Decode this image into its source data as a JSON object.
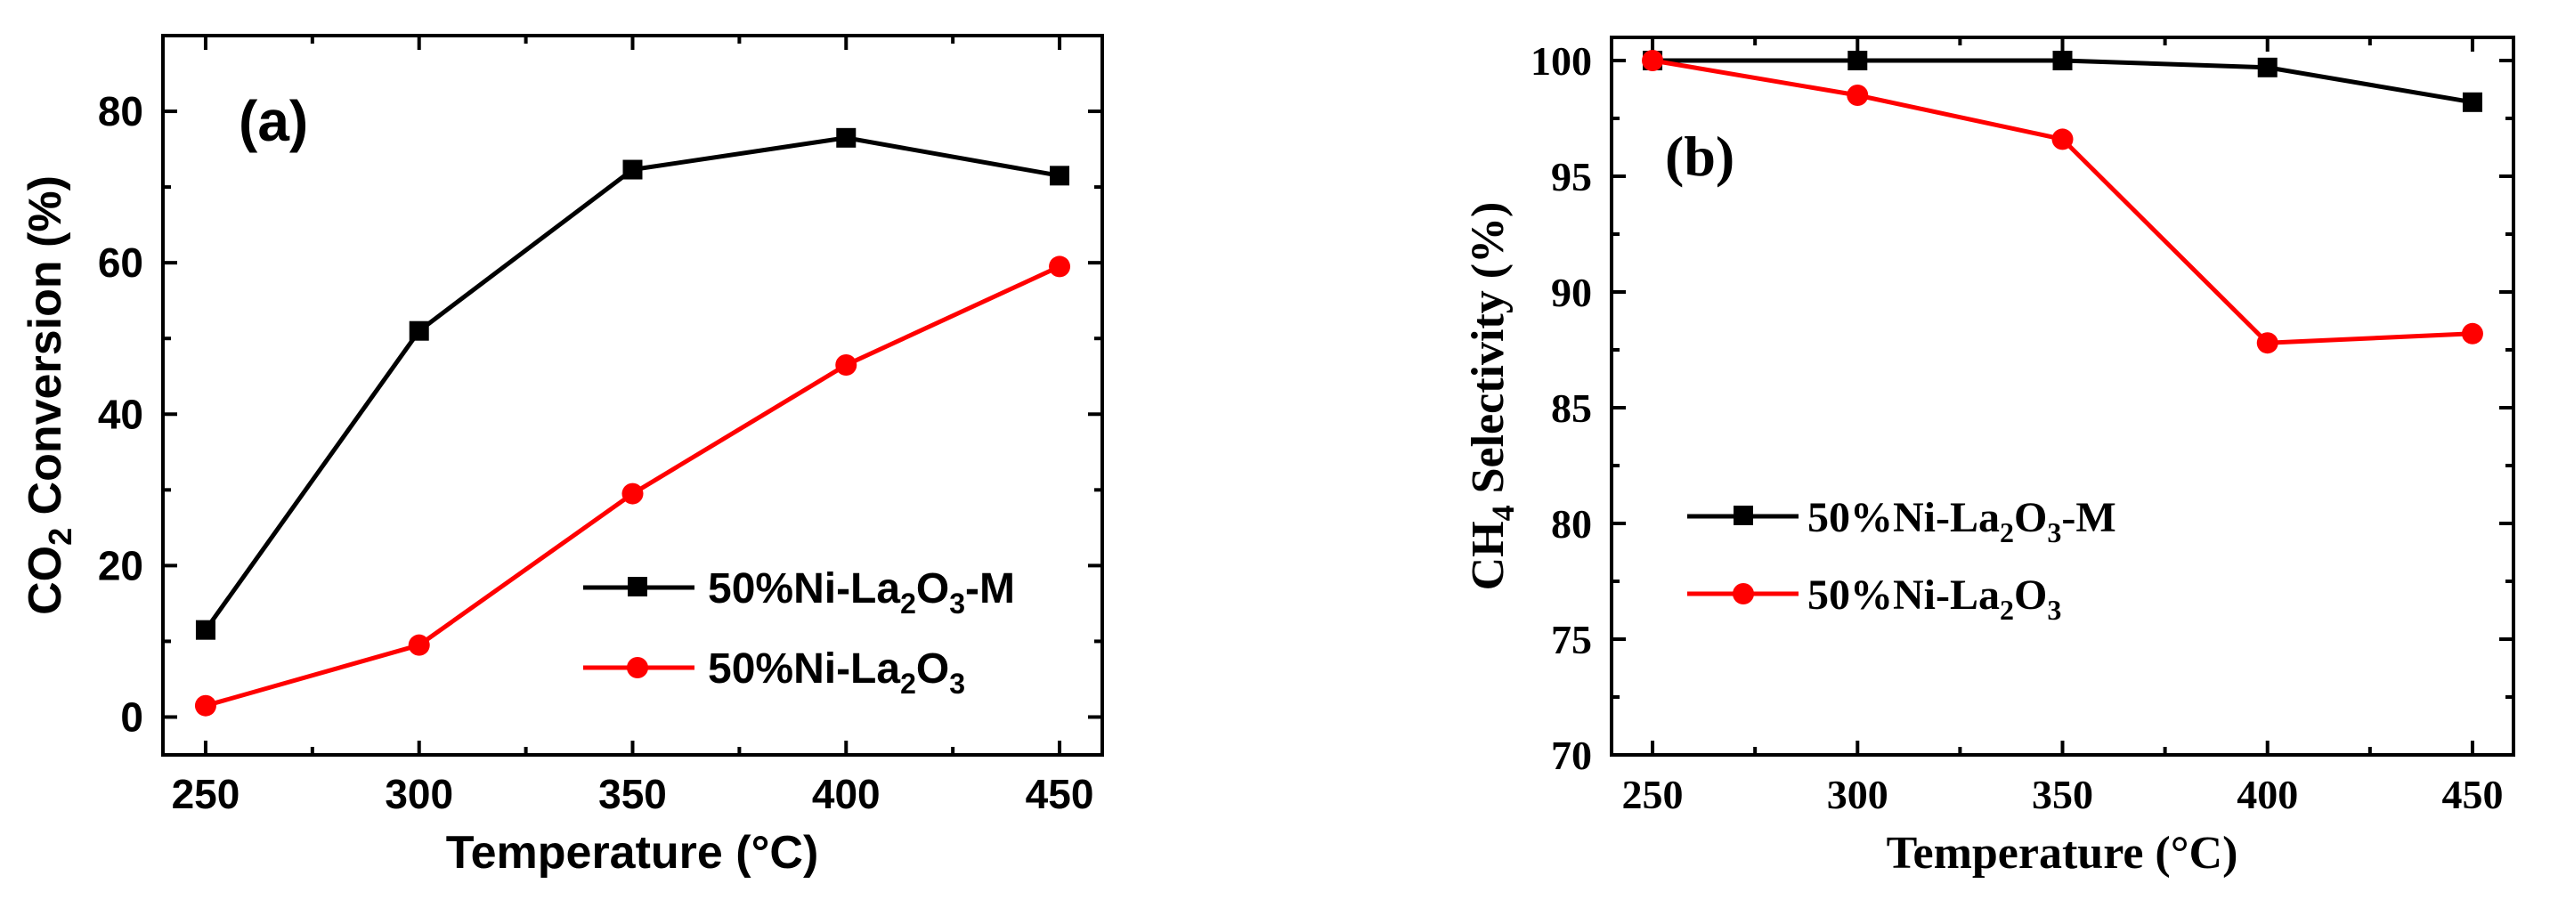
{
  "chart_data": [
    {
      "type": "line",
      "panel_label": "(a)",
      "xlabel": "Temperature (°C)",
      "ylabel": {
        "main": "CO",
        "sub": "2",
        "rest": " Conversion (%)"
      },
      "x": [
        250,
        300,
        350,
        400,
        450
      ],
      "xlim": [
        240,
        460
      ],
      "ylim": [
        -5,
        90
      ],
      "xticks": [
        250,
        300,
        350,
        400,
        450
      ],
      "yticks": [
        0,
        20,
        40,
        60,
        80
      ],
      "series": [
        {
          "name": "50%Ni-La2O3-M",
          "label_parts": [
            "50%Ni-La",
            "2",
            "O",
            "3",
            "-M"
          ],
          "color": "#000000",
          "marker": "square",
          "values": [
            11.5,
            51,
            72.3,
            76.5,
            71.5
          ]
        },
        {
          "name": "50%Ni-La2O3",
          "label_parts": [
            "50%Ni-La",
            "2",
            "O",
            "3",
            ""
          ],
          "color": "#ff0000",
          "marker": "circle",
          "values": [
            1.5,
            9.5,
            29.5,
            46.5,
            59.5
          ]
        }
      ],
      "legend": "lower-right"
    },
    {
      "type": "line",
      "panel_label": "(b)",
      "xlabel": "Temperature (°C)",
      "ylabel": {
        "main": "CH",
        "sub": "4",
        "rest": " Selectivity (%)"
      },
      "x": [
        250,
        300,
        350,
        400,
        450
      ],
      "xlim": [
        240,
        460
      ],
      "ylim": [
        70,
        101
      ],
      "xticks": [
        250,
        300,
        350,
        400,
        450
      ],
      "yticks": [
        70,
        75,
        80,
        85,
        90,
        95,
        100
      ],
      "series": [
        {
          "name": "50%Ni-La2O3-M",
          "label_parts": [
            "50%Ni-La",
            "2",
            "O",
            "3",
            "-M"
          ],
          "color": "#000000",
          "marker": "square",
          "values": [
            100,
            100,
            100,
            99.7,
            98.2
          ]
        },
        {
          "name": "50%Ni-La2O3",
          "label_parts": [
            "50%Ni-La",
            "2",
            "O",
            "3",
            ""
          ],
          "color": "#ff0000",
          "marker": "circle",
          "values": [
            100,
            98.5,
            96.6,
            87.8,
            88.2
          ]
        }
      ],
      "legend": "center-left"
    }
  ]
}
